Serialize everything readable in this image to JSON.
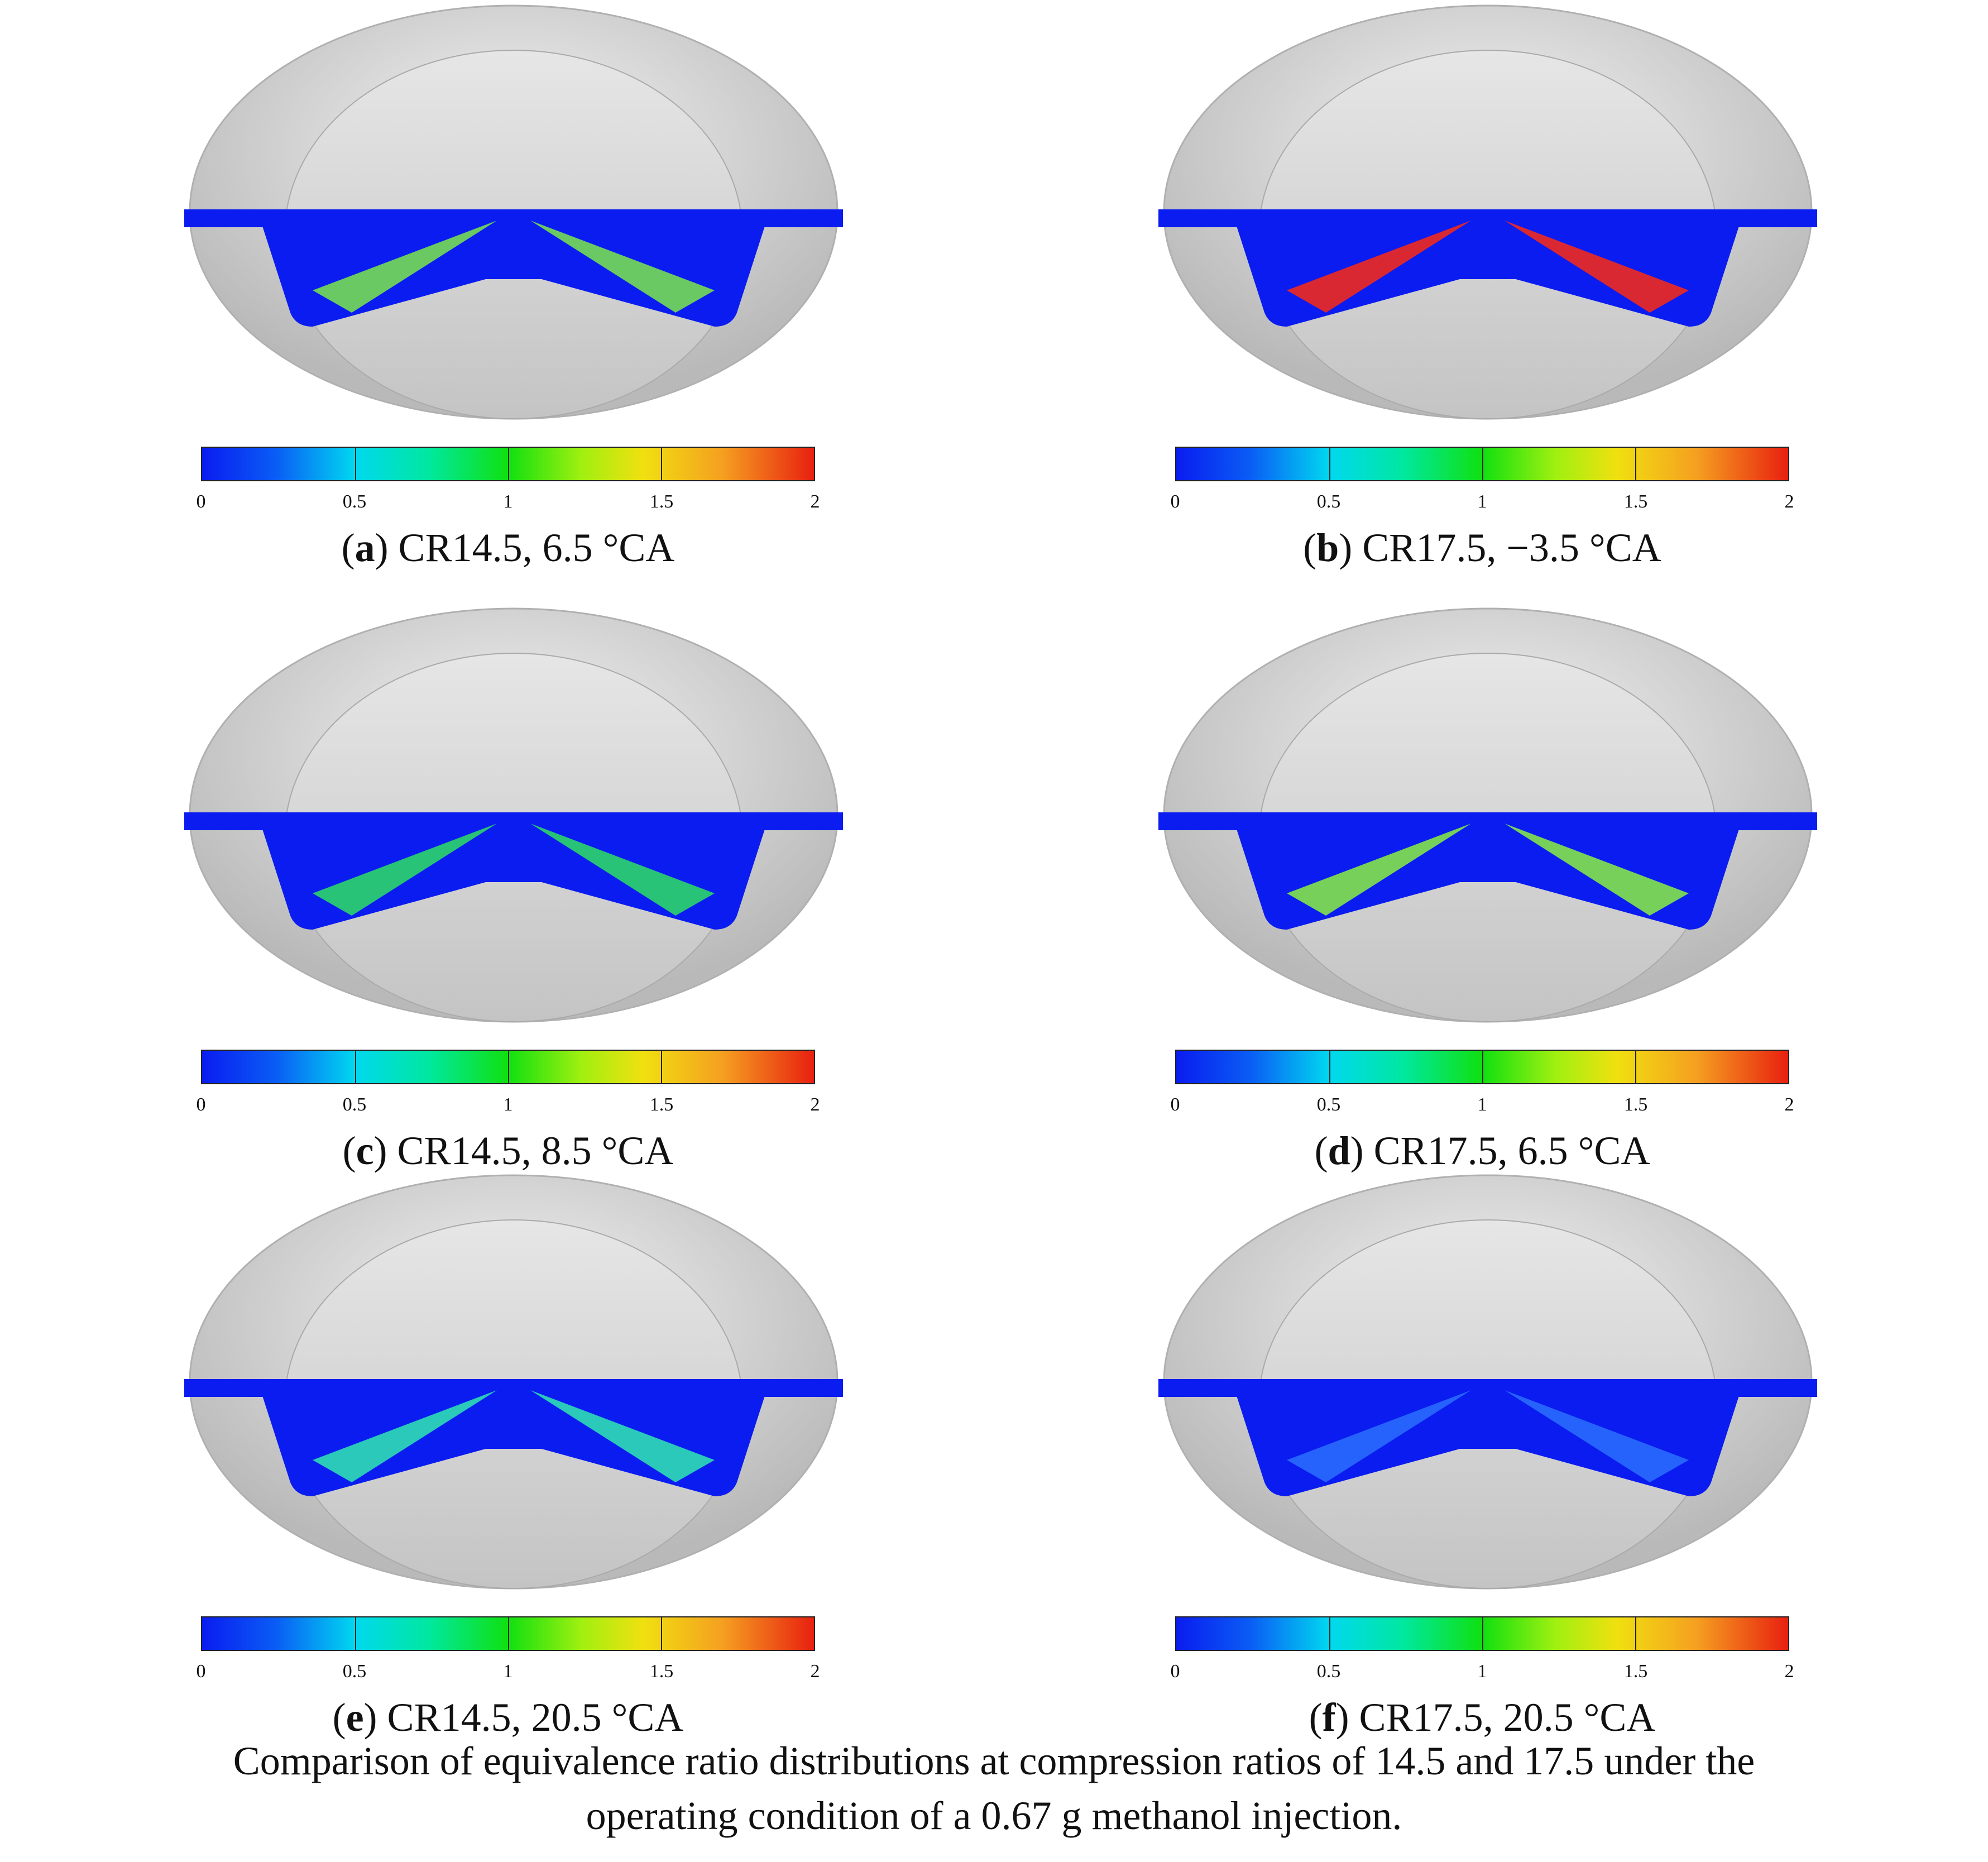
{
  "colorbar": {
    "ticks": [
      "0",
      "0.5",
      "1",
      "1.5",
      "2"
    ]
  },
  "panels": [
    {
      "letter": "a",
      "label": "CR14.5, 6.5 °CA"
    },
    {
      "letter": "b",
      "label": "CR17.5, −3.5 °CA"
    },
    {
      "letter": "c",
      "label": "CR14.5, 8.5 °CA"
    },
    {
      "letter": "d",
      "label": "CR17.5, 6.5 °CA"
    },
    {
      "letter": "e",
      "label": "CR14.5, 20.5 °CA"
    },
    {
      "letter": "f",
      "label": "CR17.5, 20.5 °CA"
    }
  ],
  "caption": {
    "line1": "Comparison of equivalence ratio distributions at compression ratios of 14.5 and 17.5 under the",
    "line2": "operating condition of a 0.67 g methanol injection."
  },
  "colors": {
    "low": "#0a1cf0",
    "mid": "#10e010",
    "high": "#e82010",
    "bowl": "#d8d8d8"
  }
}
